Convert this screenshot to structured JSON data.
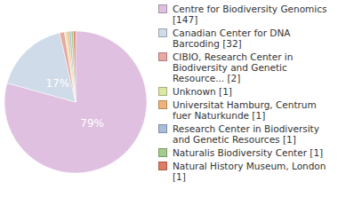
{
  "chart_data": {
    "type": "pie",
    "categories": [
      "Centre for Biodiversity Genomics [147]",
      "Canadian Center for DNA Barcoding [32]",
      "CIBIO, Research Center in Biodiversity and Genetic Resource... [2]",
      "Unknown [1]",
      "Universitat Hamburg, Centrum fuer Naturkunde [1]",
      "Research Center in Biodiversity and Genetic Resources [1]",
      "Naturalis Biodiversity Center [1]",
      "Natural History Museum, London [1]"
    ],
    "values": [
      79,
      17,
      1.1,
      0.5,
      0.5,
      0.5,
      0.5,
      0.5
    ],
    "colors": [
      "#dfc0e0",
      "#cfdbe8",
      "#e8a8a4",
      "#dde8a4",
      "#f0b478",
      "#a9bdd9",
      "#a4cc8c",
      "#e07c64"
    ],
    "data_labels": true,
    "value_labels": [
      "79%",
      "17%",
      null,
      null,
      null,
      null,
      null,
      null
    ],
    "legend": "right"
  }
}
